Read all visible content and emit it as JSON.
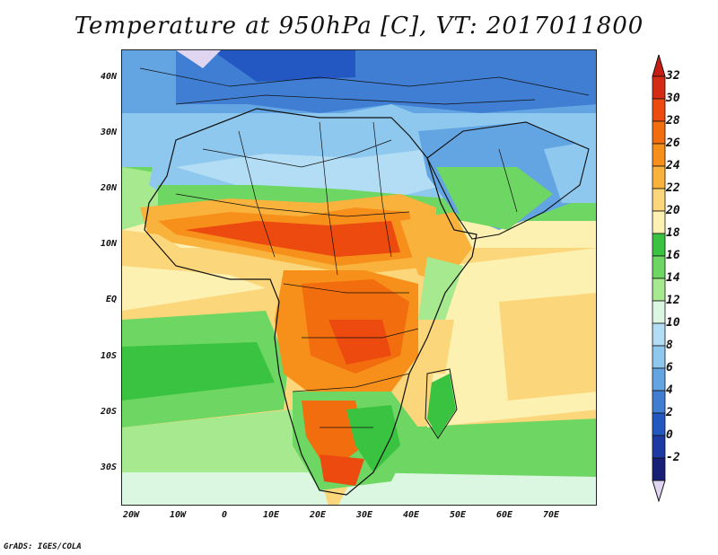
{
  "title": "Temperature at 950hPa [C], VT: 2017011800",
  "credit": "GrADS: IGES/COLA",
  "lat_labels": [
    "40N",
    "30N",
    "20N",
    "10N",
    "EQ",
    "10S",
    "20S",
    "30S"
  ],
  "lon_labels": [
    "20W",
    "10W",
    "0",
    "10E",
    "20E",
    "30E",
    "40E",
    "50E",
    "60E",
    "70E"
  ],
  "colorbar": {
    "labels": [
      "32",
      "30",
      "28",
      "26",
      "24",
      "22",
      "20",
      "18",
      "16",
      "14",
      "12",
      "10",
      "8",
      "6",
      "4",
      "2",
      "0",
      "-2"
    ],
    "colors": [
      "#d42b14",
      "#ed4a10",
      "#f26d0d",
      "#f7901a",
      "#f9b23c",
      "#fbd67a",
      "#fdf1b2",
      "#39c340",
      "#6ed662",
      "#a7e98f",
      "#dcf7e1",
      "#b2ddf4",
      "#8ec8ef",
      "#63a5e2",
      "#3f7ed2",
      "#2357c1",
      "#1d3aa4",
      "#181f76"
    ],
    "high_color": "#c81d14",
    "low_color": "#e1d6f2"
  }
}
